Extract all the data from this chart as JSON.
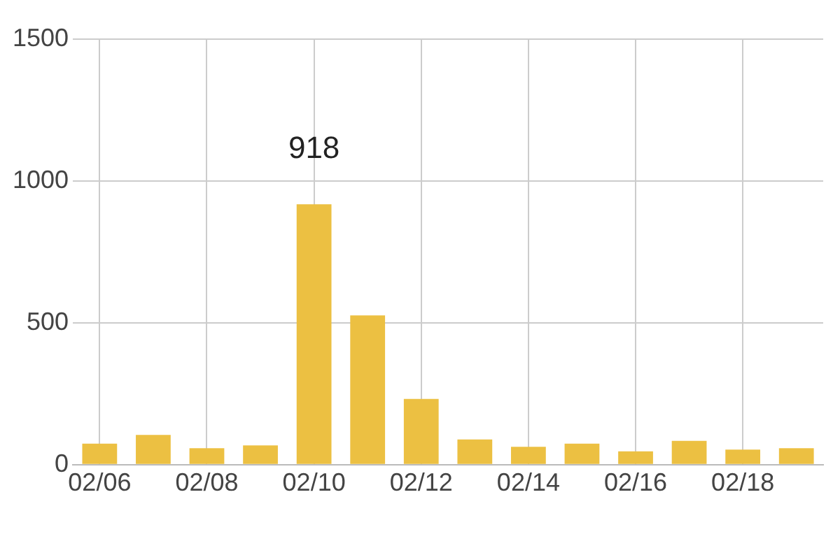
{
  "chart_data": {
    "type": "bar",
    "categories": [
      "02/06",
      null,
      "02/08",
      null,
      "02/10",
      null,
      "02/12",
      null,
      "02/14",
      null,
      "02/16",
      null,
      "02/18",
      null
    ],
    "values": [
      74,
      105,
      58,
      68,
      918,
      526,
      232,
      89,
      63,
      74,
      47,
      84,
      53,
      58
    ],
    "value_labels": [
      null,
      null,
      null,
      null,
      "918",
      null,
      null,
      null,
      null,
      null,
      null,
      null,
      null,
      null
    ],
    "color": "#ecc042",
    "ylim": [
      0,
      1500
    ],
    "yticks": [
      0,
      500,
      1000,
      1500
    ],
    "grid": true,
    "legend": false
  }
}
